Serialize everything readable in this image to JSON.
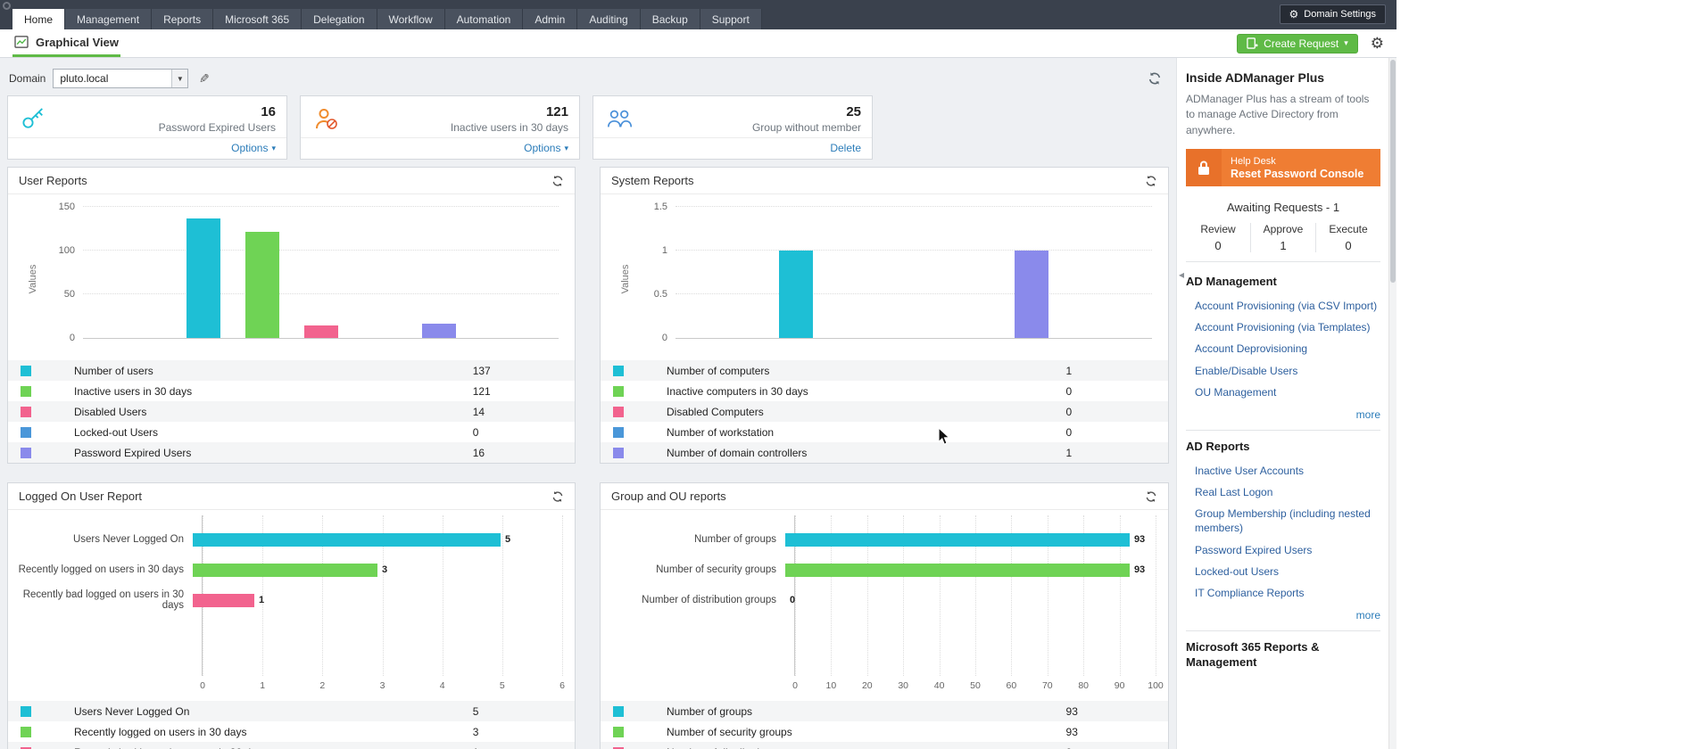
{
  "theme": {
    "nav_bg": "#3a414d",
    "accent_green": "#5fba46",
    "link_blue": "#2b7cb9",
    "sidebar_link": "#2d5f9e",
    "banner_orange": "#ef7d33"
  },
  "nav": {
    "tabs": [
      {
        "label": "Home",
        "active": true
      },
      {
        "label": "Management",
        "active": false
      },
      {
        "label": "Reports",
        "active": false
      },
      {
        "label": "Microsoft 365",
        "active": false
      },
      {
        "label": "Delegation",
        "active": false
      },
      {
        "label": "Workflow",
        "active": false
      },
      {
        "label": "Automation",
        "active": false
      },
      {
        "label": "Admin",
        "active": false
      },
      {
        "label": "Auditing",
        "active": false
      },
      {
        "label": "Backup",
        "active": false
      },
      {
        "label": "Support",
        "active": false
      }
    ],
    "domain_settings_label": "Domain Settings"
  },
  "toolbar": {
    "view_label": "Graphical View",
    "create_request_label": "Create Request"
  },
  "domain_bar": {
    "label": "Domain",
    "selected": "pluto.local"
  },
  "summary_cards": [
    {
      "icon": "key-icon",
      "value": "16",
      "label": "Password Expired Users",
      "action": "Options"
    },
    {
      "icon": "inactive-user-icon",
      "value": "121",
      "label": "Inactive users in 30 days",
      "action": "Options"
    },
    {
      "icon": "group-icon",
      "value": "25",
      "label": "Group without member",
      "action": "Delete"
    }
  ],
  "chart_data": [
    {
      "type": "bar",
      "title": "User Reports",
      "ylabel": "Values",
      "ymax": 150,
      "yticks": [
        0,
        50,
        100,
        150
      ],
      "categories": [
        "Number of users",
        "Inactive users in 30 days",
        "Disabled Users",
        "Locked-out Users",
        "Password Expired Users"
      ],
      "values": [
        137,
        121,
        14,
        0,
        16
      ],
      "colors": [
        "#1ebfd5",
        "#6fd355",
        "#f2638e",
        "#4a97d9",
        "#8a8aeb"
      ],
      "legend": true
    },
    {
      "type": "bar",
      "title": "System Reports",
      "ylabel": "Values",
      "ymax": 1.5,
      "yticks": [
        0,
        0.5,
        1,
        1.5
      ],
      "categories": [
        "Number of computers",
        "Inactive computers in 30 days",
        "Disabled Computers",
        "Number of workstation",
        "Number of domain controllers"
      ],
      "values": [
        1,
        0,
        0,
        0,
        1
      ],
      "colors": [
        "#1ebfd5",
        "#6fd355",
        "#f2638e",
        "#4a97d9",
        "#8a8aeb"
      ],
      "legend": true
    },
    {
      "type": "hbar",
      "title": "Logged On User Report",
      "xmax": 6,
      "gridlines": 6,
      "categories": [
        "Users Never Logged On",
        "Recently logged on users in 30 days",
        "Recently bad logged on users in 30 days"
      ],
      "values": [
        5,
        3,
        1
      ],
      "colors": [
        "#1ebfd5",
        "#6fd355",
        "#f2638e"
      ],
      "legend": true
    },
    {
      "type": "hbar",
      "title": "Group and OU reports",
      "xmax": 100,
      "gridlines": 10,
      "categories": [
        "Number of groups",
        "Number of security groups",
        "Number of distribution groups"
      ],
      "values": [
        93,
        93,
        0
      ],
      "colors": [
        "#1ebfd5",
        "#6fd355",
        "#f2638e"
      ],
      "legend": true
    }
  ],
  "sidebar": {
    "title": "Inside ADManager Plus",
    "description": "ADManager Plus has a stream of tools to manage Active Directory from anywhere.",
    "banner": {
      "line1": "Help Desk",
      "line2": "Reset Password Console"
    },
    "awaiting": {
      "title": "Awaiting Requests - 1",
      "items": [
        {
          "label": "Review",
          "value": "0"
        },
        {
          "label": "Approve",
          "value": "1"
        },
        {
          "label": "Execute",
          "value": "0"
        }
      ]
    },
    "sections": [
      {
        "heading": "AD Management",
        "links": [
          "Account Provisioning (via CSV Import)",
          "Account Provisioning (via Templates)",
          "Account Deprovisioning",
          "Enable/Disable Users",
          "OU Management"
        ],
        "more": "more"
      },
      {
        "heading": "AD Reports",
        "links": [
          "Inactive User Accounts",
          "Real Last Logon",
          "Group Membership (including nested members)",
          "Password Expired Users",
          "Locked-out Users",
          "IT Compliance Reports"
        ],
        "more": "more"
      },
      {
        "heading": "Microsoft 365 Reports & Management",
        "links": [],
        "more": ""
      }
    ]
  }
}
